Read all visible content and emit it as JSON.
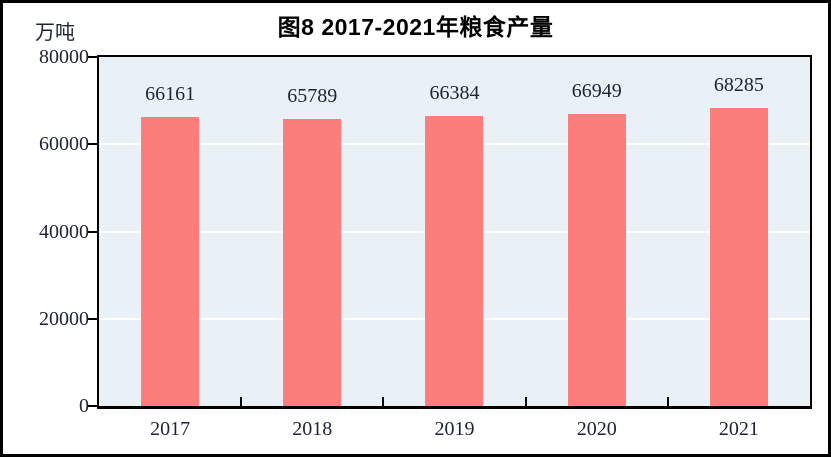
{
  "chart": {
    "title": "图8  2017-2021年粮食产量",
    "unit_label": "万吨"
  },
  "chart_data": {
    "type": "bar",
    "title": "图8  2017-2021年粮食产量",
    "unit_label": "万吨",
    "categories": [
      "2017",
      "2018",
      "2019",
      "2020",
      "2021"
    ],
    "values": [
      66161,
      65789,
      66384,
      66949,
      68285
    ],
    "data_labels_shown": true,
    "xlabel": "",
    "ylabel": "万吨",
    "yticks": [
      0,
      20000,
      40000,
      60000,
      80000
    ],
    "ylim": [
      0,
      80000
    ],
    "legend": "none",
    "grid": "horizontal-white-lines",
    "colors": {
      "bar": "#FC7E7C",
      "plot_background": "#EAF1F6",
      "gridline": "#FFFFFF",
      "axis": "#000000",
      "label_text": "#1E2430",
      "title_text": "#000000"
    }
  }
}
